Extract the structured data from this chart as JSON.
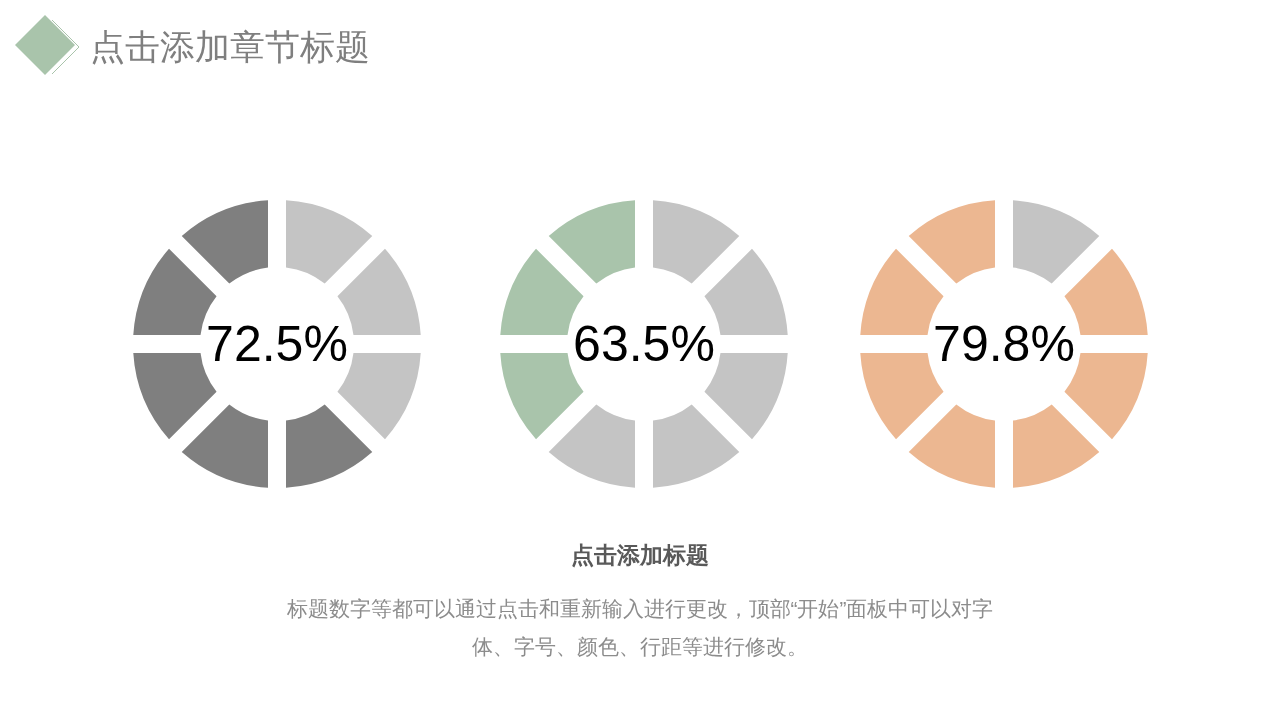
{
  "chart_data": [
    {
      "type": "other",
      "title": "点击添加章节标题"
    },
    {
      "type": "donut",
      "categories": [
        null,
        null,
        null,
        null,
        null,
        null,
        null,
        null
      ],
      "values": [
        12.5,
        12.5,
        12.5,
        12.5,
        12.5,
        12.5,
        12.5,
        12.5
      ],
      "colors": [
        "#c4c4c4",
        "#c4c4c4",
        "#c4c4c4",
        "#7f7f7f",
        "#7f7f7f",
        "#7f7f7f",
        "#7f7f7f",
        "#7f7f7f"
      ],
      "annotations": [
        "72.5%"
      ]
    },
    {
      "type": "donut",
      "categories": [
        null,
        null,
        null,
        null,
        null,
        null,
        null,
        null
      ],
      "values": [
        12.5,
        12.5,
        12.5,
        12.5,
        12.5,
        12.5,
        12.5,
        12.5
      ],
      "colors": [
        "#c4c4c4",
        "#c4c4c4",
        "#c4c4c4",
        "#c4c4c4",
        "#c4c4c4",
        "#a9c4ab",
        "#a9c4ab",
        "#a9c4ab"
      ],
      "annotations": [
        "63.5%"
      ]
    },
    {
      "type": "donut",
      "categories": [
        null,
        null,
        null,
        null,
        null,
        null,
        null,
        null
      ],
      "values": [
        12.5,
        12.5,
        12.5,
        12.5,
        12.5,
        12.5,
        12.5,
        12.5
      ],
      "colors": [
        "#c4c4c4",
        "#ecb791",
        "#ecb791",
        "#ecb791",
        "#ecb791",
        "#ecb791",
        "#ecb791",
        "#ecb791"
      ],
      "annotations": [
        "79.8%"
      ]
    },
    {
      "type": "other",
      "title": "点击添加标题",
      "annotations": [
        "标题数字等都可以通过点击和重新输入进行更改，顶部“开始”面板中可以对字体、字号、颜色、行距等进行修改。"
      ]
    }
  ]
}
